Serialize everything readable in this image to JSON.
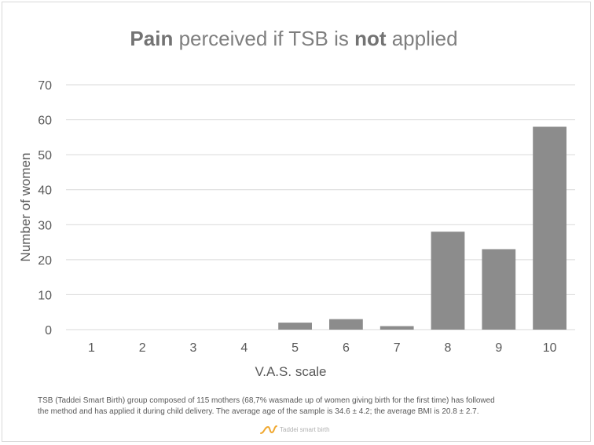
{
  "title": {
    "bold_1": "Pain",
    "text_1": " perceived if TSB is ",
    "bold_2": "not",
    "text_2": " applied"
  },
  "chart_data": {
    "type": "bar",
    "title": "Pain perceived if TSB is not applied",
    "xlabel": "V.A.S. scale",
    "ylabel": "Number of women",
    "categories": [
      "1",
      "2",
      "3",
      "4",
      "5",
      "6",
      "7",
      "8",
      "9",
      "10"
    ],
    "values": [
      0,
      0,
      0,
      0,
      2,
      3,
      1,
      28,
      23,
      58
    ],
    "ylim": [
      0,
      70
    ],
    "yticks": [
      0,
      10,
      20,
      30,
      40,
      50,
      60,
      70
    ],
    "grid": true,
    "legend": "none",
    "bar_color": "#8c8c8c",
    "grid_color": "#d9d9d9",
    "text_color": "#595959"
  },
  "footnote": {
    "line_1": "TSB (Taddei Smart Birth) group composed of 115 mothers (68,7% wasmade up of women giving birth for the first time) has followed",
    "line_2": "the method and has applied it during child delivery. The average age of the sample is 34.6 ± 4.2; the average BMI is 20.8 ± 2.7."
  },
  "logo": {
    "text": "Taddei smart birth",
    "color": "#f0a830"
  }
}
